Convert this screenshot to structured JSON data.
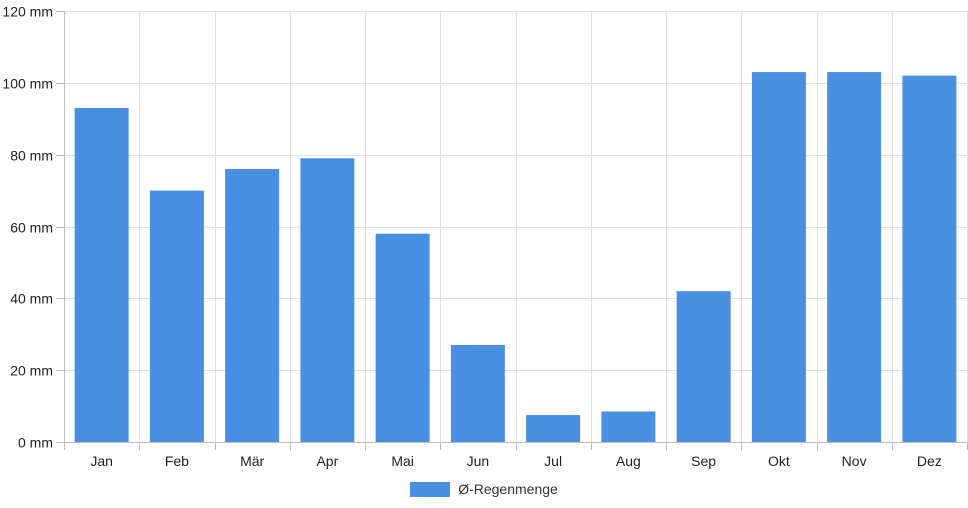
{
  "chart_data": {
    "type": "bar",
    "categories": [
      "Jan",
      "Feb",
      "Mär",
      "Apr",
      "Mai",
      "Jun",
      "Jul",
      "Aug",
      "Sep",
      "Okt",
      "Nov",
      "Dez"
    ],
    "series": [
      {
        "name": "Ø-Regenmenge",
        "values": [
          93,
          70,
          76,
          79,
          58,
          27,
          7.5,
          8.5,
          42,
          103,
          103,
          102
        ],
        "color": "#4a90e2"
      }
    ],
    "y_ticks": [
      0,
      20,
      40,
      60,
      80,
      100,
      120
    ],
    "y_tick_suffix": " mm",
    "ylim": [
      0,
      120
    ],
    "grid": true,
    "legend_position": "bottom"
  },
  "colors": {
    "grid": "#e0e0e0",
    "axis": "#bdbdbd"
  }
}
